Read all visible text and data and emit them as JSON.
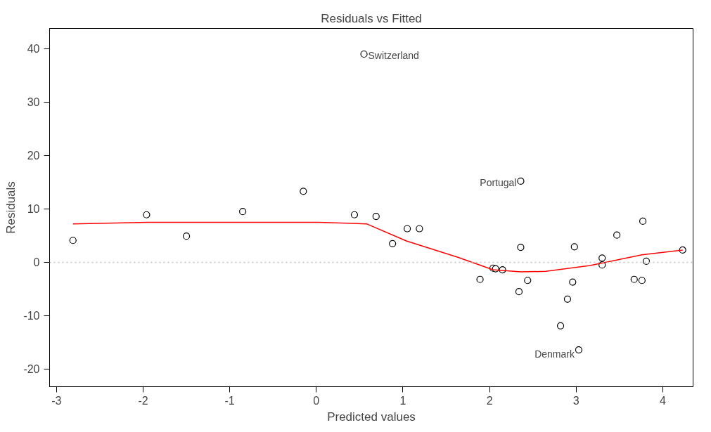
{
  "chart_data": {
    "type": "scatter",
    "title": "Residuals vs Fitted",
    "xlabel": "Predicted values",
    "ylabel": "Residuals",
    "xlim": [
      -3.08,
      4.35
    ],
    "ylim": [
      -23.3,
      43.8
    ],
    "xticks": [
      -3,
      -2,
      -1,
      0,
      1,
      2,
      3,
      4
    ],
    "yticks": [
      -20,
      -10,
      0,
      10,
      20,
      30,
      40
    ],
    "grid": false,
    "series": [
      {
        "color": "#000000",
        "marker": "circle",
        "x": [
          -2.81,
          -1.96,
          -1.5,
          -0.85,
          -0.15,
          0.44,
          0.55,
          0.69,
          0.88,
          1.05,
          1.19,
          1.89,
          2.04,
          2.07,
          2.15,
          2.36,
          2.36,
          2.34,
          2.44,
          2.82,
          2.9,
          2.96,
          2.98,
          3.03,
          3.3,
          3.3,
          3.47,
          3.67,
          3.76,
          3.77,
          3.81,
          4.23
        ],
        "values": [
          4.1,
          8.9,
          4.9,
          9.5,
          13.3,
          8.9,
          39.0,
          8.6,
          3.5,
          6.3,
          6.3,
          -3.2,
          -1.1,
          -1.2,
          -1.4,
          15.2,
          2.8,
          -5.5,
          -3.4,
          -11.9,
          -6.9,
          -3.7,
          2.9,
          -16.4,
          0.8,
          -0.5,
          5.1,
          -3.2,
          -3.4,
          7.7,
          0.2,
          2.3
        ]
      },
      {
        "type": "line",
        "color": "#ff0000",
        "line_style": "solid",
        "x": [
          -2.81,
          -1.94,
          0.02,
          0.58,
          1.04,
          1.64,
          2.04,
          2.36,
          2.65,
          3.16,
          3.76,
          4.23
        ],
        "values": [
          7.2,
          7.5,
          7.5,
          7.2,
          4.0,
          0.9,
          -1.4,
          -1.8,
          -1.7,
          -0.6,
          1.4,
          2.3
        ]
      }
    ],
    "ref_lines": [
      {
        "axis": "y",
        "value": 0,
        "color": "#bebebe",
        "line_style": "dotted"
      }
    ],
    "annotations": [
      {
        "text": "Switzerland",
        "x": 0.55,
        "y": 39.0
      },
      {
        "text": "Portugal",
        "x": 2.36,
        "y": 15.2
      },
      {
        "text": "Denmark",
        "x": 3.03,
        "y": -16.4
      }
    ]
  }
}
